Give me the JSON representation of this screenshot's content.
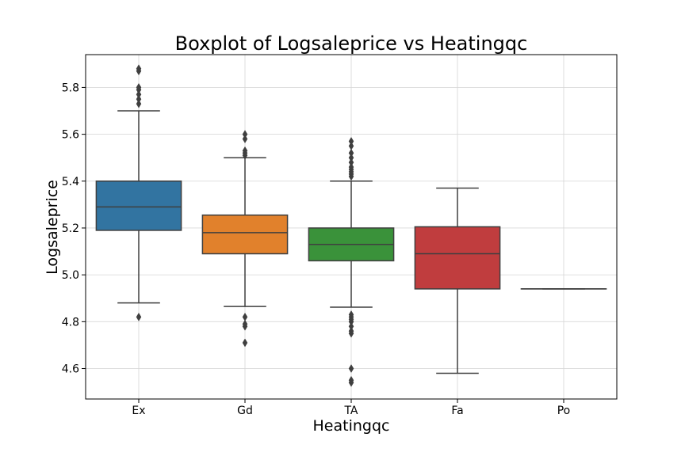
{
  "chart_data": {
    "type": "boxplot",
    "title": "Boxplot of Logsaleprice vs Heatingqc",
    "xlabel": "Heatingqc",
    "ylabel": "Logsaleprice",
    "categories": [
      "Ex",
      "Gd",
      "TA",
      "Fa",
      "Po"
    ],
    "ylim": [
      4.47,
      5.94
    ],
    "yticks": [
      4.6,
      4.8,
      5.0,
      5.2,
      5.4,
      5.6,
      5.8
    ],
    "grid": true,
    "boxes": [
      {
        "category": "Ex",
        "color": "#3274a1",
        "whisker_low": 4.88,
        "q1": 5.19,
        "median": 5.29,
        "q3": 5.4,
        "whisker_high": 5.7,
        "outliers": [
          4.82,
          5.73,
          5.75,
          5.77,
          5.79,
          5.8,
          5.87,
          5.88
        ]
      },
      {
        "category": "Gd",
        "color": "#e1812c",
        "whisker_low": 4.865,
        "q1": 5.09,
        "median": 5.18,
        "q3": 5.255,
        "whisker_high": 5.5,
        "outliers": [
          4.71,
          4.78,
          4.79,
          4.82,
          5.51,
          5.52,
          5.53,
          5.58,
          5.6
        ]
      },
      {
        "category": "TA",
        "color": "#3a923a",
        "whisker_low": 4.862,
        "q1": 5.06,
        "median": 5.13,
        "q3": 5.2,
        "whisker_high": 5.4,
        "outliers": [
          4.54,
          4.55,
          4.6,
          4.75,
          4.76,
          4.78,
          4.8,
          4.81,
          4.82,
          4.83,
          5.42,
          5.43,
          5.44,
          5.45,
          5.46,
          5.48,
          5.5,
          5.52,
          5.55,
          5.57
        ]
      },
      {
        "category": "Fa",
        "color": "#c03d3e",
        "whisker_low": 4.58,
        "q1": 4.94,
        "median": 5.09,
        "q3": 5.205,
        "whisker_high": 5.37,
        "outliers": []
      },
      {
        "category": "Po",
        "color": "#9372b2",
        "whisker_low": 4.94,
        "q1": 4.94,
        "median": 4.94,
        "q3": 4.94,
        "whisker_high": 4.94,
        "outliers": []
      }
    ]
  }
}
